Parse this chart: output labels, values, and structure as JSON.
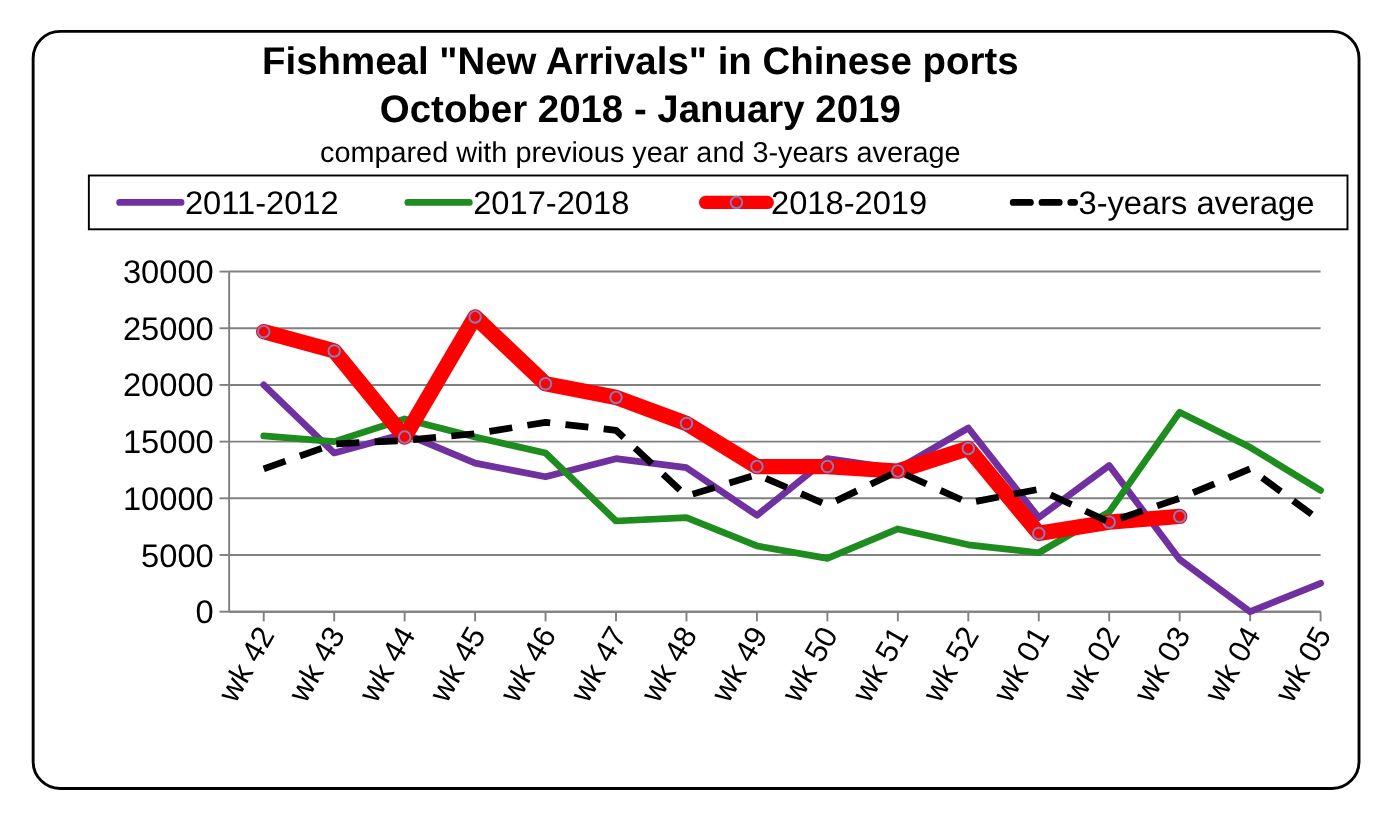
{
  "chart_data": {
    "type": "line",
    "title": "Fishmeal \"New Arrivals\" in Chinese ports\nOctober 2018 - January 2019",
    "subtitle": "compared with previous year and 3-years average",
    "categories": [
      "wk 42",
      "wk 43",
      "wk 44",
      "wk 45",
      "wk 46",
      "wk 47",
      "wk 48",
      "wk 49",
      "wk 50",
      "wk 51",
      "wk 52",
      "wk 01",
      "wk 02",
      "wk 03",
      "wk 04",
      "wk 05"
    ],
    "series": [
      {
        "name": "2011-2012",
        "color": "#7030a0",
        "values": [
          20000,
          14000,
          15700,
          13100,
          11900,
          13500,
          12700,
          8500,
          13500,
          12600,
          16200,
          8300,
          12900,
          4600,
          0,
          2500
        ]
      },
      {
        "name": "2017-2018",
        "color": "#1e8c1e",
        "values": [
          15500,
          15000,
          17000,
          15400,
          14000,
          8000,
          8300,
          5800,
          4700,
          7300,
          5900,
          5200,
          8800,
          17600,
          14500,
          10700
        ]
      },
      {
        "name": "2018-2019",
        "color": "#ff0000",
        "marker": "circle",
        "values": [
          24700,
          23000,
          15400,
          26000,
          20100,
          18900,
          16600,
          12800,
          12800,
          12400,
          14400,
          6900,
          7900,
          8400,
          null,
          null
        ]
      },
      {
        "name": "3-years average",
        "color": "#000000",
        "line_style": "dashed",
        "values": [
          12600,
          14800,
          15100,
          15700,
          16700,
          16000,
          10200,
          12100,
          9400,
          12400,
          9600,
          10800,
          7900,
          10000,
          12600,
          8000
        ]
      }
    ],
    "ylim": [
      0,
      30000
    ],
    "yticks": [
      0,
      5000,
      10000,
      15000,
      20000,
      25000,
      30000
    ],
    "grid": "y",
    "legend": "top",
    "marker": "none",
    "line_style": "solid"
  }
}
